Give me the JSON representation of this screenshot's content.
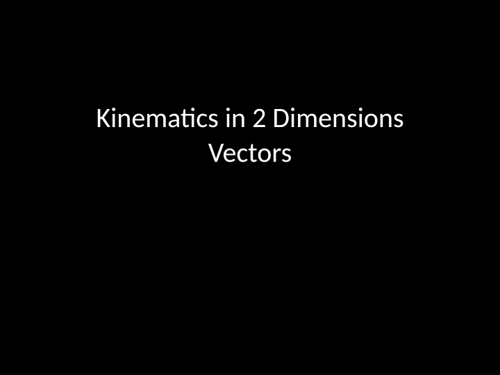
{
  "slide": {
    "title_line1": "Kinematics in 2 Dimensions",
    "title_line2": "Vectors",
    "background_color": "#000000",
    "text_color": "#ffffff",
    "font_size": 40,
    "font_family": "Calibri"
  }
}
